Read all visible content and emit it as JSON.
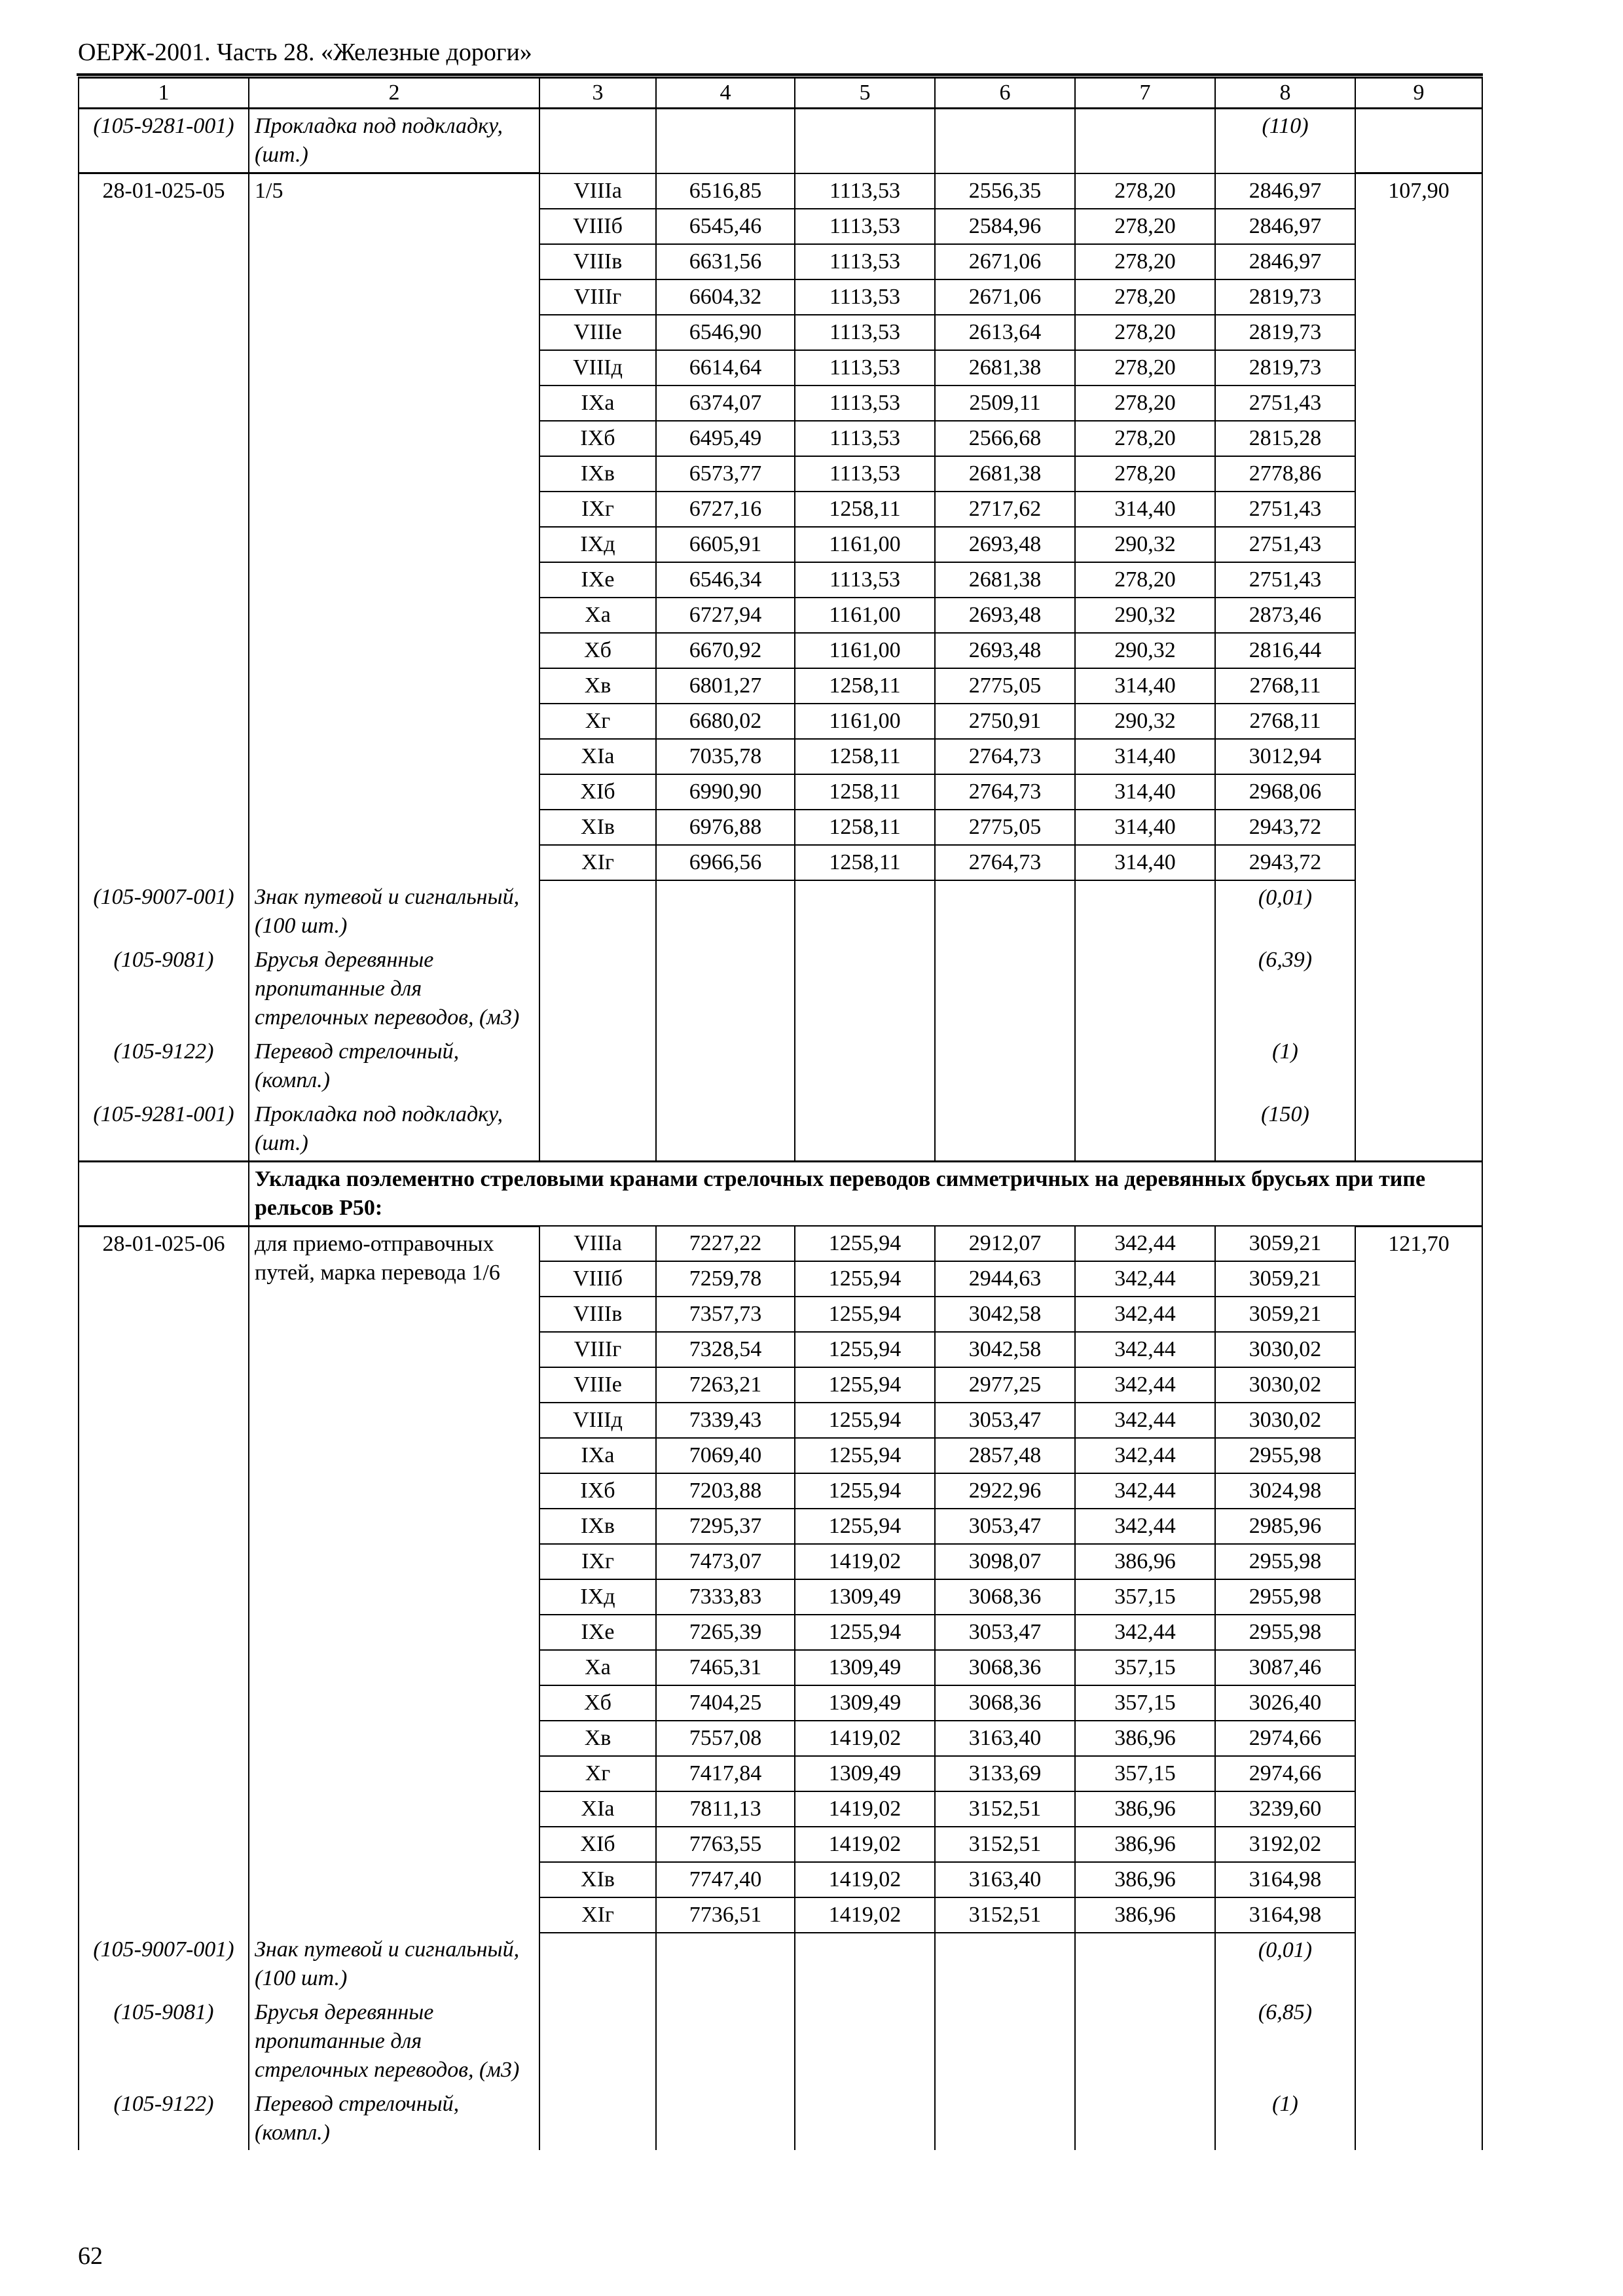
{
  "running_head": "ОЕРЖ-2001. Часть 28. «Железные дороги»",
  "page_number": "62",
  "columns": [
    "1",
    "2",
    "3",
    "4",
    "5",
    "6",
    "7",
    "8",
    "9"
  ],
  "sections": [
    {
      "type": "item",
      "code": "(105-9281-001)",
      "text": "Прокладка под подкладку, (шт.)",
      "c8": "(110)"
    },
    {
      "type": "group",
      "code": "28-01-025-05",
      "name": "1/5",
      "c9": "107,90",
      "rows": [
        [
          "VIIIа",
          "6516,85",
          "1113,53",
          "2556,35",
          "278,20",
          "2846,97"
        ],
        [
          "VIIIб",
          "6545,46",
          "1113,53",
          "2584,96",
          "278,20",
          "2846,97"
        ],
        [
          "VIIIв",
          "6631,56",
          "1113,53",
          "2671,06",
          "278,20",
          "2846,97"
        ],
        [
          "VIIIг",
          "6604,32",
          "1113,53",
          "2671,06",
          "278,20",
          "2819,73"
        ],
        [
          "VIIIе",
          "6546,90",
          "1113,53",
          "2613,64",
          "278,20",
          "2819,73"
        ],
        [
          "VIIIд",
          "6614,64",
          "1113,53",
          "2681,38",
          "278,20",
          "2819,73"
        ],
        [
          "IXа",
          "6374,07",
          "1113,53",
          "2509,11",
          "278,20",
          "2751,43"
        ],
        [
          "IXб",
          "6495,49",
          "1113,53",
          "2566,68",
          "278,20",
          "2815,28"
        ],
        [
          "IXв",
          "6573,77",
          "1113,53",
          "2681,38",
          "278,20",
          "2778,86"
        ],
        [
          "IXг",
          "6727,16",
          "1258,11",
          "2717,62",
          "314,40",
          "2751,43"
        ],
        [
          "IXд",
          "6605,91",
          "1161,00",
          "2693,48",
          "290,32",
          "2751,43"
        ],
        [
          "IXе",
          "6546,34",
          "1113,53",
          "2681,38",
          "278,20",
          "2751,43"
        ],
        [
          "Xа",
          "6727,94",
          "1161,00",
          "2693,48",
          "290,32",
          "2873,46"
        ],
        [
          "Xб",
          "6670,92",
          "1161,00",
          "2693,48",
          "290,32",
          "2816,44"
        ],
        [
          "Xв",
          "6801,27",
          "1258,11",
          "2775,05",
          "314,40",
          "2768,11"
        ],
        [
          "Xг",
          "6680,02",
          "1161,00",
          "2750,91",
          "290,32",
          "2768,11"
        ],
        [
          "XIа",
          "7035,78",
          "1258,11",
          "2764,73",
          "314,40",
          "3012,94"
        ],
        [
          "XIб",
          "6990,90",
          "1258,11",
          "2764,73",
          "314,40",
          "2968,06"
        ],
        [
          "XIв",
          "6976,88",
          "1258,11",
          "2775,05",
          "314,40",
          "2943,72"
        ],
        [
          "XIг",
          "6966,56",
          "1258,11",
          "2764,73",
          "314,40",
          "2943,72"
        ]
      ]
    },
    {
      "type": "item",
      "code": "(105-9007-001)",
      "text": "Знак путевой и сигнальный, (100 шт.)",
      "c8": "(0,01)"
    },
    {
      "type": "item",
      "code": "(105-9081)",
      "text": "Брусья деревянные пропитанные для стрелочных переводов, (м3)",
      "c8": "(6,39)"
    },
    {
      "type": "item",
      "code": "(105-9122)",
      "text": "Перевод стрелочный, (компл.)",
      "c8": "(1)"
    },
    {
      "type": "item",
      "code": "(105-9281-001)",
      "text": "Прокладка под подкладку, (шт.)",
      "c8": "(150)"
    },
    {
      "type": "heading",
      "text": "Укладка поэлементно стреловыми кранами стрелочных переводов симметричных на деревянных брусьях при типе рельсов Р50:"
    },
    {
      "type": "group",
      "code": "28-01-025-06",
      "name": "для приемо-отправочных путей, марка перевода 1/6",
      "c9": "121,70",
      "rows": [
        [
          "VIIIа",
          "7227,22",
          "1255,94",
          "2912,07",
          "342,44",
          "3059,21"
        ],
        [
          "VIIIб",
          "7259,78",
          "1255,94",
          "2944,63",
          "342,44",
          "3059,21"
        ],
        [
          "VIIIв",
          "7357,73",
          "1255,94",
          "3042,58",
          "342,44",
          "3059,21"
        ],
        [
          "VIIIг",
          "7328,54",
          "1255,94",
          "3042,58",
          "342,44",
          "3030,02"
        ],
        [
          "VIIIе",
          "7263,21",
          "1255,94",
          "2977,25",
          "342,44",
          "3030,02"
        ],
        [
          "VIIIд",
          "7339,43",
          "1255,94",
          "3053,47",
          "342,44",
          "3030,02"
        ],
        [
          "IXа",
          "7069,40",
          "1255,94",
          "2857,48",
          "342,44",
          "2955,98"
        ],
        [
          "IXб",
          "7203,88",
          "1255,94",
          "2922,96",
          "342,44",
          "3024,98"
        ],
        [
          "IXв",
          "7295,37",
          "1255,94",
          "3053,47",
          "342,44",
          "2985,96"
        ],
        [
          "IXг",
          "7473,07",
          "1419,02",
          "3098,07",
          "386,96",
          "2955,98"
        ],
        [
          "IXд",
          "7333,83",
          "1309,49",
          "3068,36",
          "357,15",
          "2955,98"
        ],
        [
          "IXе",
          "7265,39",
          "1255,94",
          "3053,47",
          "342,44",
          "2955,98"
        ],
        [
          "Xа",
          "7465,31",
          "1309,49",
          "3068,36",
          "357,15",
          "3087,46"
        ],
        [
          "Xб",
          "7404,25",
          "1309,49",
          "3068,36",
          "357,15",
          "3026,40"
        ],
        [
          "Xв",
          "7557,08",
          "1419,02",
          "3163,40",
          "386,96",
          "2974,66"
        ],
        [
          "Xг",
          "7417,84",
          "1309,49",
          "3133,69",
          "357,15",
          "2974,66"
        ],
        [
          "XIа",
          "7811,13",
          "1419,02",
          "3152,51",
          "386,96",
          "3239,60"
        ],
        [
          "XIб",
          "7763,55",
          "1419,02",
          "3152,51",
          "386,96",
          "3192,02"
        ],
        [
          "XIв",
          "7747,40",
          "1419,02",
          "3163,40",
          "386,96",
          "3164,98"
        ],
        [
          "XIг",
          "7736,51",
          "1419,02",
          "3152,51",
          "386,96",
          "3164,98"
        ]
      ]
    },
    {
      "type": "item",
      "code": "(105-9007-001)",
      "text": "Знак путевой и сигнальный, (100 шт.)",
      "c8": "(0,01)"
    },
    {
      "type": "item",
      "code": "(105-9081)",
      "text": "Брусья деревянные пропитанные для стрелочных переводов, (м3)",
      "c8": "(6,85)"
    },
    {
      "type": "item",
      "code": "(105-9122)",
      "text": "Перевод стрелочный, (компл.)",
      "c8": "(1)"
    }
  ]
}
